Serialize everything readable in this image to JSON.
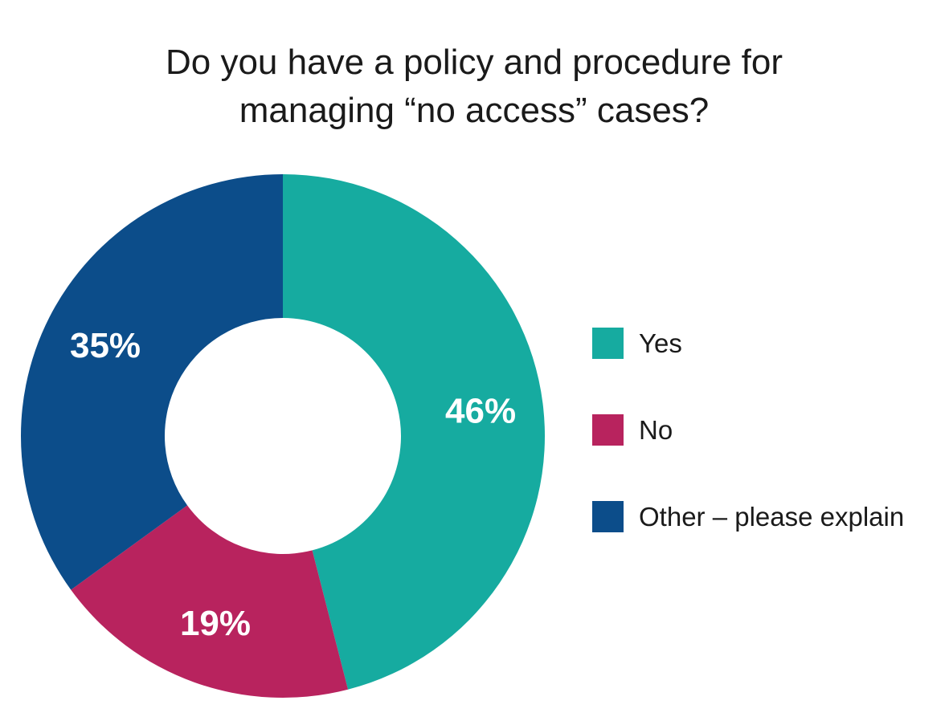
{
  "chart_data": {
    "type": "pie",
    "variant": "donut",
    "title": [
      "Do you have a policy and procedure for",
      "managing “no access” cases?"
    ],
    "categories": [
      "Yes",
      "No",
      "Other – please explain"
    ],
    "values": [
      46,
      19,
      35
    ],
    "value_labels": [
      "46%",
      "19%",
      "35%"
    ],
    "colors": [
      "#16aba0",
      "#b8235e",
      "#0c4d8a"
    ],
    "legend": {
      "placement": "right",
      "entries": [
        "Yes",
        "No",
        "Other – please explain"
      ]
    },
    "start_angle_deg": 0,
    "direction": "clockwise"
  }
}
